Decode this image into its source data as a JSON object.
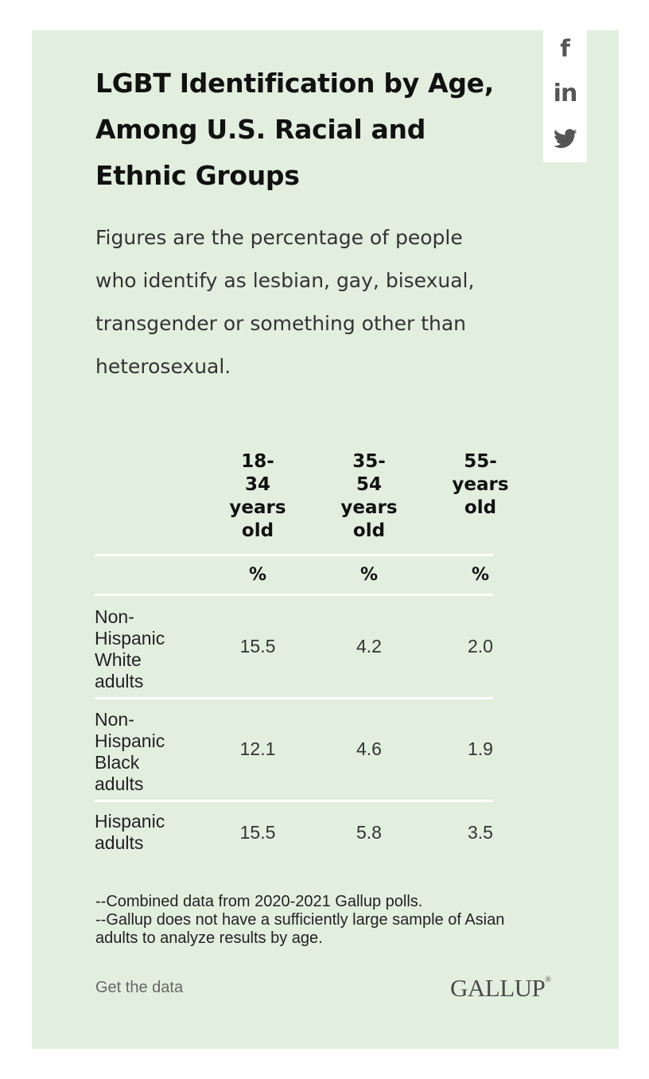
{
  "social": {
    "facebook_glyph": "f",
    "linkedin_glyph": "in"
  },
  "chart_data": {
    "type": "table",
    "title": "LGBT Identification by Age, Among U.S. Racial and Ethnic Groups",
    "subtitle": "Figures are the percentage of people who identify as lesbian, gay, bisexual, transgender or something other than heterosexual.",
    "columns": [
      "18-\n34\nyears\nold",
      "35-\n54\nyears\nold",
      "55-\nyears\nold"
    ],
    "unit_row": [
      "%",
      "%",
      "%"
    ],
    "rows": [
      {
        "label": "Non-\nHispanic\nWhite\nadults",
        "values": [
          "15.5",
          "4.2",
          "2.0"
        ]
      },
      {
        "label": "Non-\nHispanic\nBlack\nadults",
        "values": [
          "12.1",
          "4.6",
          "1.9"
        ]
      },
      {
        "label": "Hispanic\nadults",
        "values": [
          "15.5",
          "5.8",
          "3.5"
        ]
      }
    ],
    "notes": "--Combined data from 2020-2021 Gallup polls.\n--Gallup does not have a sufficiently large sample of Asian adults to analyze results by age."
  },
  "footer": {
    "link_label": "Get the data",
    "brand": "GALLUP",
    "brand_mark": "®"
  },
  "colors": {
    "card_background": "#e2efdf",
    "icon_gray": "#555555"
  }
}
